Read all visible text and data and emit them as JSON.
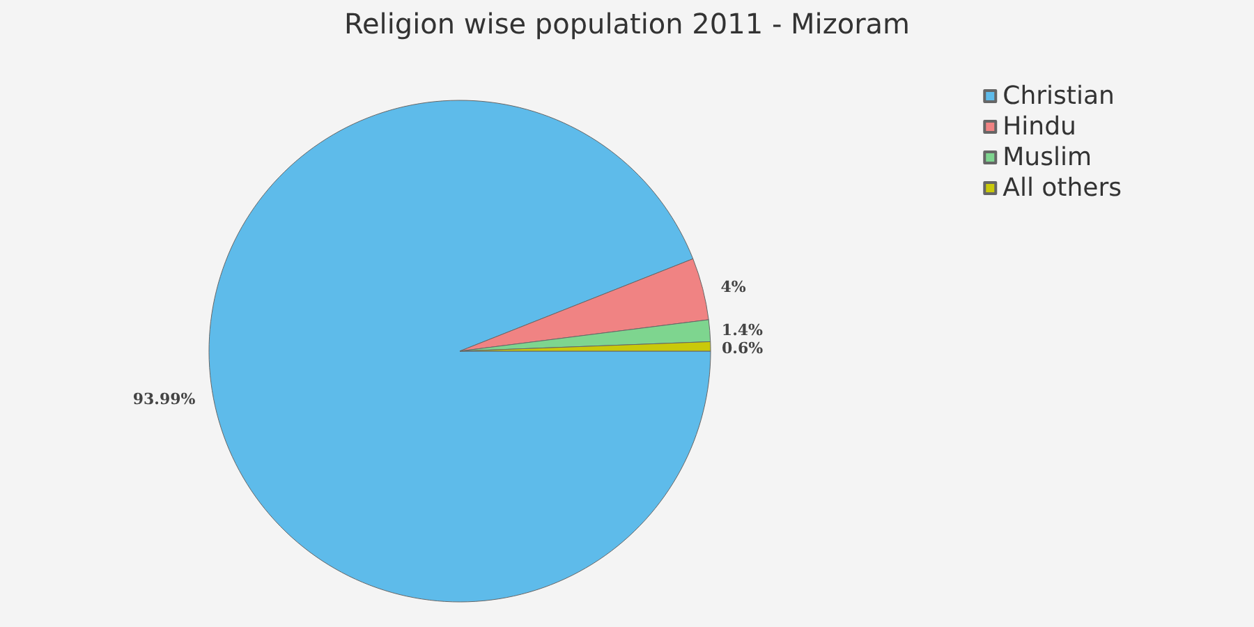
{
  "chart_data": {
    "type": "pie",
    "title": "Religion wise population 2011 - Mizoram",
    "categories": [
      "Christian",
      "Hindu",
      "Muslim",
      "All others"
    ],
    "values": [
      93.99,
      4,
      1.4,
      0.6
    ],
    "colors": [
      "#5ebbea",
      "#f08383",
      "#7ed58f",
      "#c9c90a"
    ],
    "value_labels": [
      "93.99%",
      "4%",
      "1.4%",
      "0.6%"
    ],
    "legend": "top right"
  }
}
